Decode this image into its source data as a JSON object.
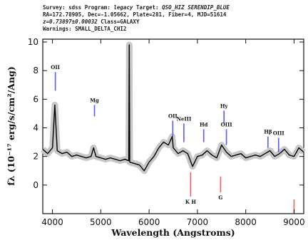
{
  "header": {
    "survey_label": "Survey:",
    "survey": "sdss",
    "program_label": "Program:",
    "program": "legacy",
    "target_label": "Target:",
    "target": "QSO_HIZ SERENDIP_BLUE",
    "line2": "RA=172.78905, Dec=-1.05662, Plate=281, Fiber=4, MJD=51614",
    "line3_z": "z=0.73897±0.00032",
    "line3_class": "Class=GALAXY",
    "line4": "Warnings: SMALL_DELTA_CHI2"
  },
  "chart_data": {
    "type": "line",
    "xlabel": "Wavelength (Angstroms)",
    "ylabel": "fλ (10⁻¹⁷ erg/s/cm²/Ang)",
    "xlim": [
      3800,
      9200
    ],
    "ylim": [
      -2,
      10.2
    ],
    "xticks": [
      4000,
      5000,
      6000,
      7000,
      8000,
      9000
    ],
    "yticks": [
      0,
      2,
      4,
      6,
      8,
      10
    ],
    "series": [
      {
        "color": "#000000",
        "x": [
          3800,
          3900,
          4000,
          4050,
          4100,
          4200,
          4300,
          4400,
          4500,
          4600,
          4700,
          4800,
          4850,
          4900,
          5000,
          5100,
          5200,
          5300,
          5400,
          5500,
          5580,
          5590,
          5600,
          5700,
          5800,
          5900,
          6000,
          6100,
          6200,
          6300,
          6400,
          6480,
          6500,
          6600,
          6700,
          6800,
          6900,
          7000,
          7100,
          7200,
          7300,
          7400,
          7500,
          7600,
          7700,
          7800,
          7900,
          8000,
          8100,
          8200,
          8300,
          8400,
          8500,
          8600,
          8700,
          8800,
          8900,
          9000,
          9100,
          9200
        ],
        "y": [
          2.5,
          2.2,
          2.6,
          5.6,
          2.4,
          2.2,
          2.3,
          2.0,
          2.1,
          2.0,
          1.9,
          2.0,
          2.6,
          2.0,
          1.9,
          1.8,
          1.9,
          1.8,
          1.7,
          1.8,
          1.7,
          9.8,
          1.6,
          1.5,
          1.4,
          1.0,
          1.6,
          2.0,
          2.6,
          3.0,
          2.8,
          3.4,
          2.6,
          2.2,
          2.4,
          2.2,
          1.3,
          2.0,
          2.1,
          2.4,
          2.1,
          1.9,
          2.8,
          2.3,
          2.0,
          2.1,
          2.2,
          1.9,
          2.0,
          2.1,
          2.0,
          2.2,
          2.4,
          2.0,
          2.2,
          2.5,
          2.1,
          2.0,
          2.6,
          2.3
        ]
      }
    ],
    "error_band_color": "#c8c8c8",
    "emission_lines": [
      {
        "label": "OII",
        "x": 4060,
        "y1": 6.6,
        "y2": 7.9,
        "color": "#5a5aff"
      },
      {
        "label": "Mg",
        "x": 4870,
        "y1": 4.8,
        "y2": 5.6,
        "color": "#5a5aff"
      },
      {
        "label": "OII",
        "x": 6490,
        "y1": 3.4,
        "y2": 4.5,
        "color": "#5a5aff"
      },
      {
        "label": "NeIII",
        "x": 6720,
        "y1": 3.0,
        "y2": 4.3,
        "color": "#5a5aff"
      },
      {
        "label": "Hd",
        "x": 7130,
        "y1": 3.0,
        "y2": 3.9,
        "color": "#5a5aff"
      },
      {
        "label": "Hy",
        "x": 7550,
        "y1": 4.3,
        "y2": 5.2,
        "color": "#5a5aff"
      },
      {
        "label": "OIII",
        "x": 7600,
        "y1": 2.8,
        "y2": 3.9,
        "color": "#5a5aff"
      },
      {
        "label": "Hβ",
        "x": 8460,
        "y1": 2.6,
        "y2": 3.4,
        "color": "#5a5aff"
      },
      {
        "label": "OIII",
        "x": 8680,
        "y1": 2.3,
        "y2": 3.3,
        "color": "#5a5aff"
      },
      {
        "label": "K H",
        "x": 6860,
        "y1": -0.8,
        "y2": 0.9,
        "color": "#ff5a5a"
      },
      {
        "label": "G",
        "x": 7480,
        "y1": -0.5,
        "y2": 0.6,
        "color": "#ff5a5a"
      },
      {
        "label": "",
        "x": 9000,
        "y1": -2.0,
        "y2": -1.0,
        "color": "#ff5a5a"
      }
    ]
  }
}
